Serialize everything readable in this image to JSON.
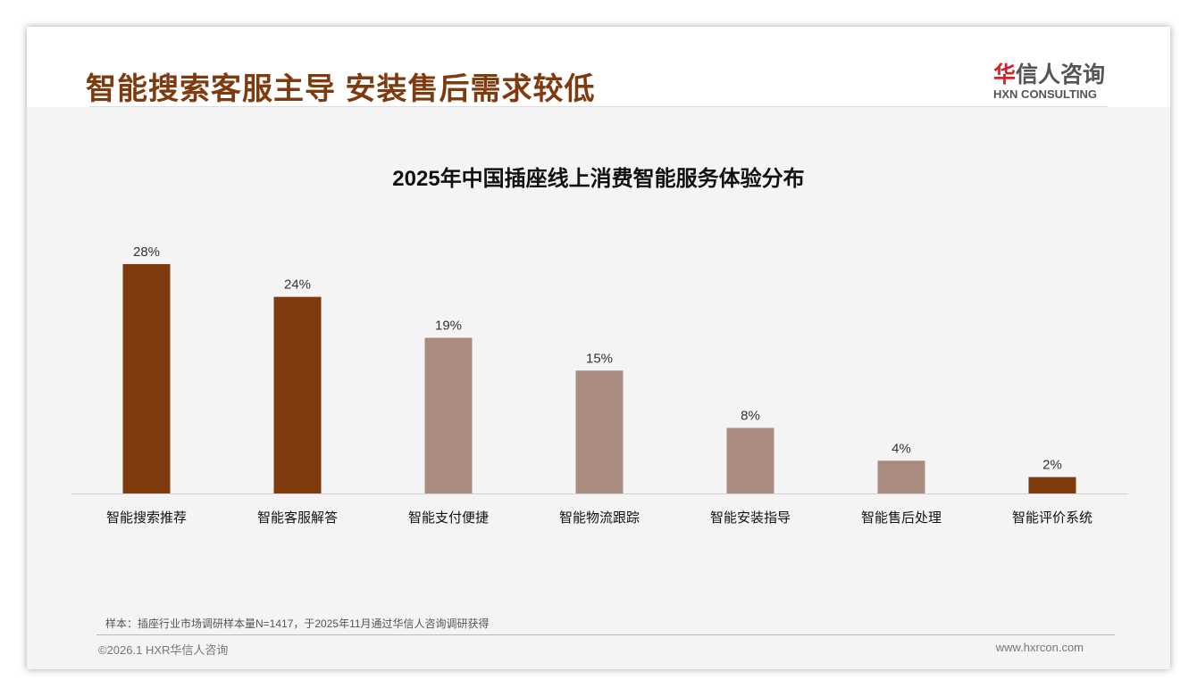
{
  "header": {
    "title": "智能搜索客服主导 安装售后需求较低",
    "logo_cn_red": "华",
    "logo_cn": "信人咨询",
    "logo_en": "HXN CONSULTING"
  },
  "colors": {
    "dark": "#7f3a0e",
    "light": "#a98b80"
  },
  "chart_data": {
    "type": "bar",
    "title": "2025年中国插座线上消费智能服务体验分布",
    "categories": [
      "智能搜索推荐",
      "智能客服解答",
      "智能支付便捷",
      "智能物流跟踪",
      "智能安装指导",
      "智能售后处理",
      "智能评价系统"
    ],
    "values": [
      28,
      24,
      19,
      15,
      8,
      4,
      2
    ],
    "labels": [
      "28%",
      "24%",
      "19%",
      "15%",
      "8%",
      "4%",
      "2%"
    ],
    "highlight": [
      true,
      true,
      false,
      false,
      false,
      false,
      true
    ],
    "unit": "%",
    "ylim": [
      0,
      30
    ],
    "grid": false
  },
  "footer": {
    "note": "样本：插座行业市场调研样本量N=1417，于2025年11月通过华信人咨询调研获得",
    "copyright": "©2026.1 HXR华信人咨询",
    "url": "www.hxrcon.com"
  }
}
